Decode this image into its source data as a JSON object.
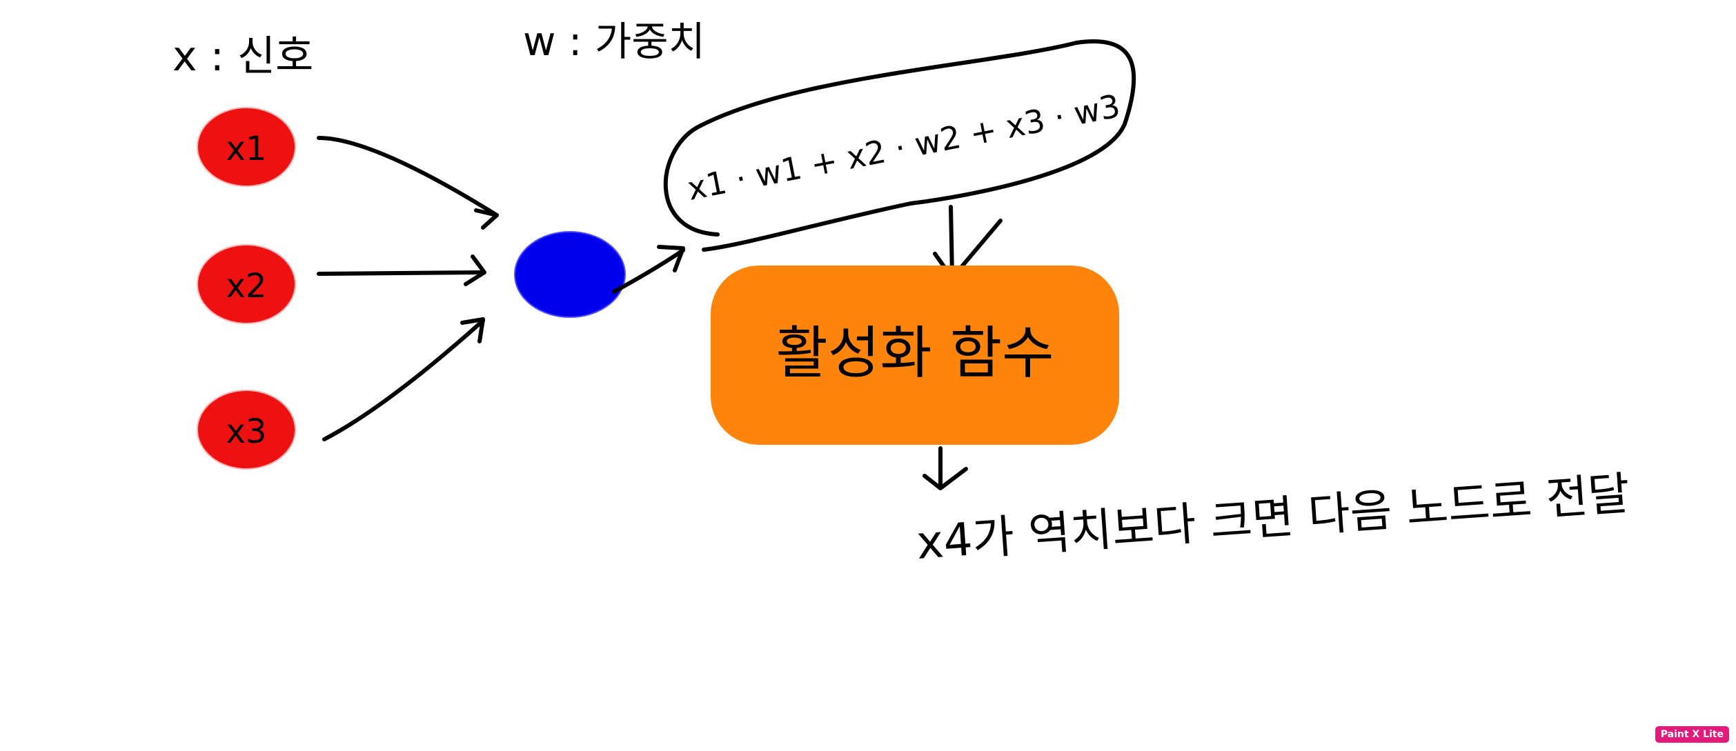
{
  "labels": {
    "signal_label": "x : 신호",
    "weight_label": "w : 가중치",
    "input_1": "x1",
    "input_2": "x2",
    "input_3": "x3",
    "weighted_sum": "x1 · w1 + x2 · w2 + x3 · w3",
    "activation_function": "활성화 함수",
    "output_note": "x4가 역치보다 크면 다음 노드로 전달"
  },
  "watermark": "Paint X Lite",
  "colors": {
    "input_node": "#ee1111",
    "sum_node": "#0000ee",
    "activation_box": "#ff840c",
    "ink": "#000000",
    "watermark_bg": "#e5197c"
  }
}
